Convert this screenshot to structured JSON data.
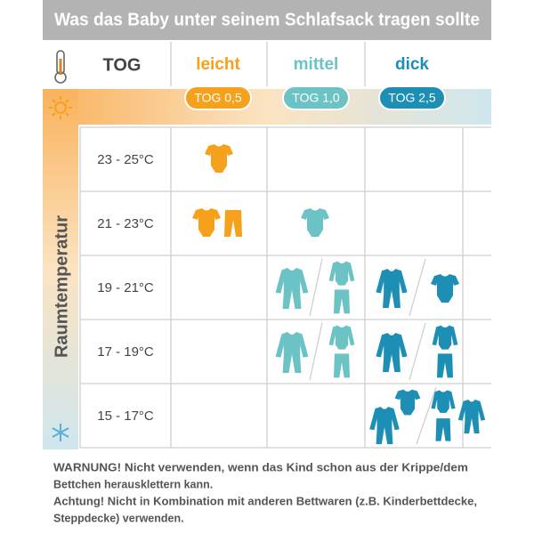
{
  "title": "Was das Baby unter seinem Schlafsack tragen sollte",
  "header": {
    "tog_label": "TOG",
    "columns": [
      {
        "name": "leicht",
        "tog": "TOG 0,5"
      },
      {
        "name": "mittel",
        "tog": "TOG 1,0"
      },
      {
        "name": "dick",
        "tog": "TOG 2,5"
      }
    ]
  },
  "side_label": "Raumtemperatur",
  "rows": [
    "23 - 25°C",
    "21 - 23°C",
    "19 - 21°C",
    "17 - 19°C",
    "15 - 17°C"
  ],
  "footer": [
    "WARNUNG! Nicht verwenden, wenn das Kind schon aus der Krippe/dem",
    "Bettchen herausklettern kann.",
    "Achtung! Nicht in Kombination mit anderen Bettwaren (z.B. Kinderbettdecke,",
    "Steppdecke) verwenden."
  ]
}
